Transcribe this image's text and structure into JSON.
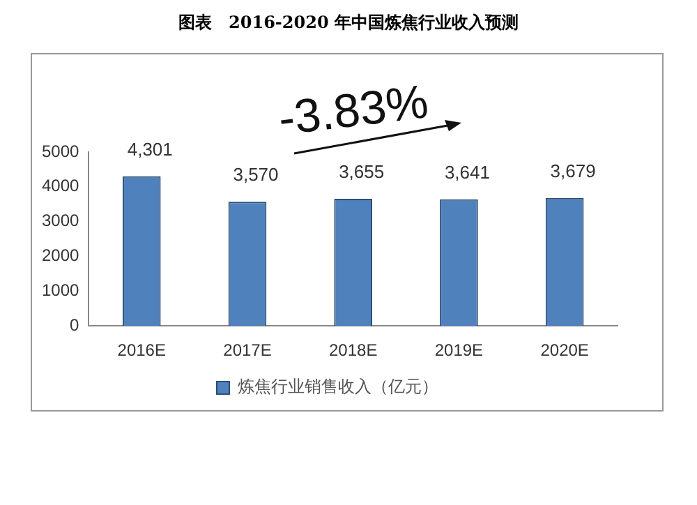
{
  "chart_data": {
    "type": "bar",
    "title": "图表　2016-2020 年中国炼焦行业收入预测",
    "categories": [
      "2016E",
      "2017E",
      "2018E",
      "2019E",
      "2020E"
    ],
    "series": [
      {
        "name": "炼焦行业销售收入（亿元）",
        "color": "#4f81bd",
        "values": [
          4301,
          3570,
          3655,
          3641,
          3679
        ],
        "value_labels": [
          "4,301",
          "3,570",
          "3,655",
          "3,641",
          "3,679"
        ]
      }
    ],
    "ylim": [
      0,
      5000
    ],
    "yticks": [
      0,
      1000,
      2000,
      3000,
      4000,
      5000
    ],
    "grid": false,
    "legend": "bottom",
    "annotations": [
      "-3.83%"
    ]
  }
}
